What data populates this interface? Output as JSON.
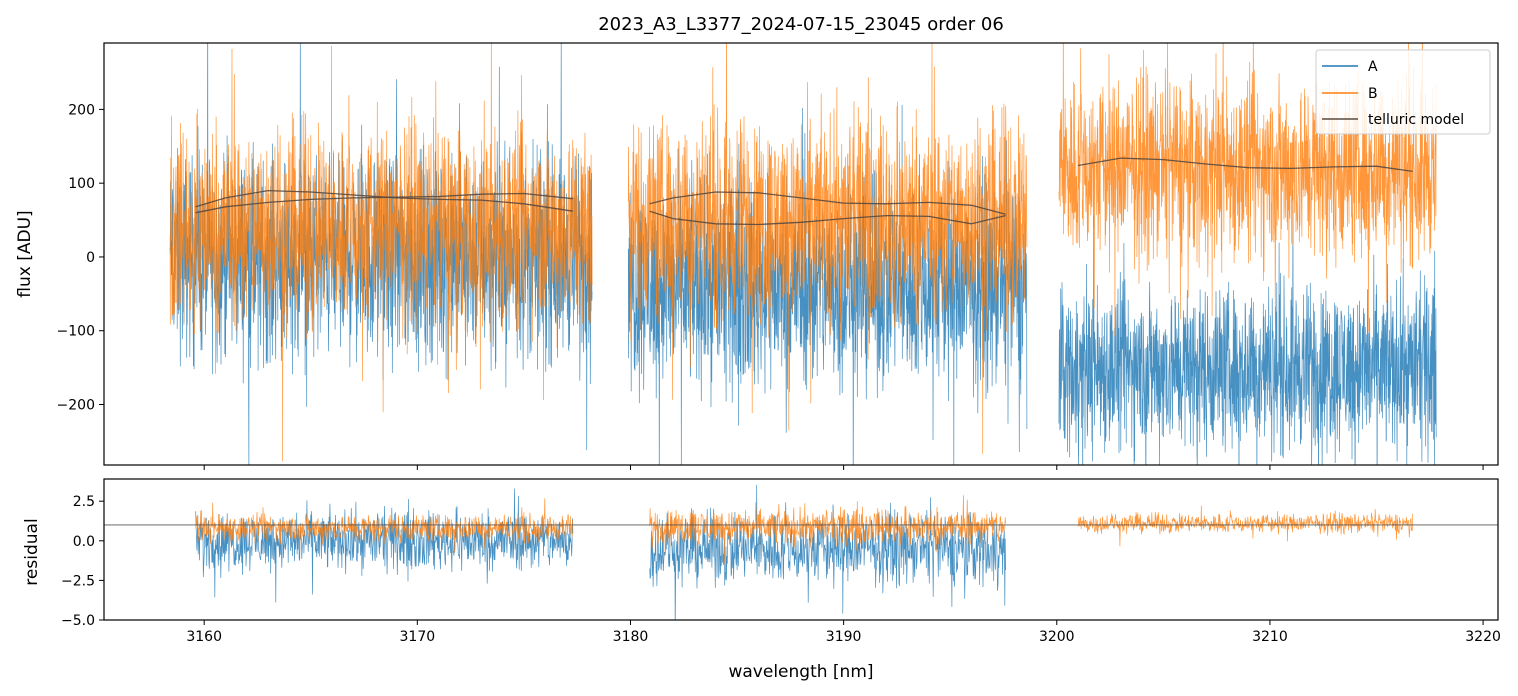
{
  "chart_data": [
    {
      "type": "line",
      "panel": "spectrum",
      "title": "2023_A3_L3377_2024-07-15_23045  order 06",
      "xlabel": "",
      "ylabel": "flux [ADU]",
      "xlim": [
        3155.3,
        3220.7
      ],
      "ylim": [
        -282,
        290
      ],
      "yticks": [
        200,
        100,
        0,
        -100,
        -200
      ],
      "ytick_labels": [
        "200",
        "100",
        "0",
        "−100",
        "−200"
      ],
      "xticks": [
        3160,
        3170,
        3180,
        3190,
        3200,
        3210,
        3220
      ],
      "grid": false,
      "legend": {
        "location": "top-right",
        "entries": [
          {
            "label": "A",
            "color": "#1f77b4"
          },
          {
            "label": "B",
            "color": "#ff7f0e"
          },
          {
            "label": "telluric model",
            "color": "#5a4a3f"
          }
        ]
      },
      "series": [
        {
          "name": "A",
          "color": "#1f77b4",
          "style": "dense noisy spectrum",
          "segments": [
            {
              "x_range": [
                3158.4,
                3178.2
              ],
              "center": 0,
              "spread": 110
            },
            {
              "x_range": [
                3179.9,
                3198.6
              ],
              "center": -40,
              "spread": 110
            },
            {
              "x_range": [
                3200.1,
                3217.8
              ],
              "center": -150,
              "spread": 90
            }
          ]
        },
        {
          "name": "B",
          "color": "#ff7f0e",
          "style": "dense noisy spectrum",
          "segments": [
            {
              "x_range": [
                3158.4,
                3178.2
              ],
              "center": 40,
              "spread": 110
            },
            {
              "x_range": [
                3179.9,
                3198.6
              ],
              "center": 50,
              "spread": 110
            },
            {
              "x_range": [
                3200.1,
                3217.8
              ],
              "center": 120,
              "spread": 100
            }
          ]
        },
        {
          "name": "telluric model",
          "color": "#5a4a3f",
          "curves": [
            {
              "x": [
                3159.6,
                3161,
                3163,
                3165,
                3167,
                3169,
                3171,
                3173,
                3175,
                3177.3
              ],
              "y": [
                68,
                80,
                90,
                88,
                84,
                80,
                78,
                77,
                72,
                62
              ]
            },
            {
              "x": [
                3159.6,
                3161,
                3163,
                3165,
                3167,
                3169,
                3171,
                3173,
                3175,
                3177.3
              ],
              "y": [
                60,
                68,
                74,
                78,
                80,
                81,
                82,
                85,
                86,
                79
              ]
            },
            {
              "x": [
                3180.9,
                3182,
                3184,
                3186,
                3188,
                3190,
                3192,
                3194,
                3196,
                3197.6
              ],
              "y": [
                72,
                80,
                88,
                87,
                80,
                73,
                72,
                74,
                70,
                58
              ]
            },
            {
              "x": [
                3180.9,
                3182,
                3184,
                3186,
                3188,
                3190,
                3192,
                3194,
                3196,
                3197.6
              ],
              "y": [
                62,
                52,
                45,
                44,
                47,
                52,
                56,
                55,
                45,
                56
              ]
            },
            {
              "x": [
                3201,
                3203,
                3205,
                3207,
                3209,
                3211,
                3213,
                3215,
                3216.7
              ],
              "y": [
                124,
                134,
                132,
                126,
                121,
                120,
                122,
                123,
                116
              ]
            }
          ]
        }
      ]
    },
    {
      "type": "line",
      "panel": "residual",
      "xlabel": "wavelength [nm]",
      "ylabel": "residual",
      "xlim": [
        3155.3,
        3220.7
      ],
      "ylim": [
        -5.0,
        3.9
      ],
      "yticks": [
        2.5,
        0.0,
        -2.5,
        -5.0
      ],
      "ytick_labels": [
        "2.5",
        "0.0",
        "−2.5",
        "−5.0"
      ],
      "xticks": [
        3160,
        3170,
        3180,
        3190,
        3200,
        3210,
        3220
      ],
      "xtick_labels": [
        "3160",
        "3170",
        "3180",
        "3190",
        "3200",
        "3210",
        "3220"
      ],
      "reference_line": 1.0,
      "grid": false,
      "series": [
        {
          "name": "A",
          "color": "#1f77b4",
          "segments": [
            {
              "x_range": [
                3159.6,
                3177.3
              ],
              "center": 0.0,
              "spread": 1.5
            },
            {
              "x_range": [
                3180.9,
                3197.6
              ],
              "center": -0.5,
              "spread": 1.8
            }
          ]
        },
        {
          "name": "B",
          "color": "#ff7f0e",
          "segments": [
            {
              "x_range": [
                3159.6,
                3177.3
              ],
              "center": 0.8,
              "spread": 0.7
            },
            {
              "x_range": [
                3180.9,
                3197.6
              ],
              "center": 0.9,
              "spread": 0.9
            },
            {
              "x_range": [
                3201,
                3216.7
              ],
              "center": 1.1,
              "spread": 0.5
            }
          ]
        }
      ]
    }
  ]
}
